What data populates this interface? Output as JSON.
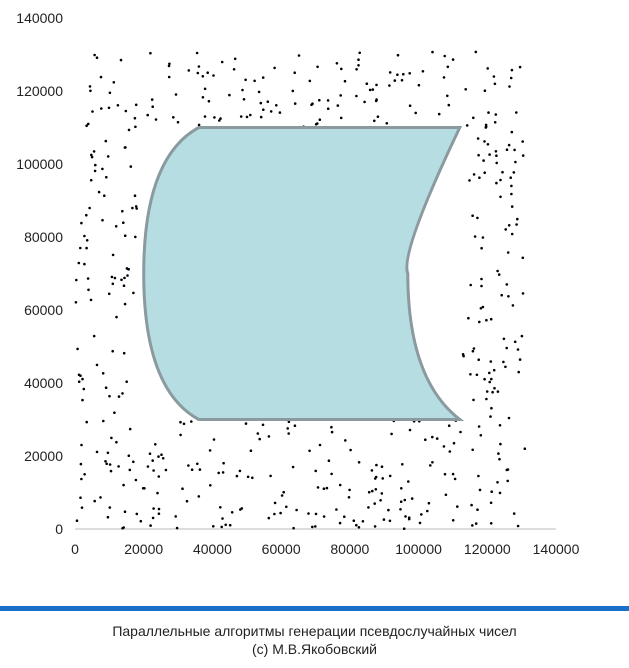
{
  "chart_data": {
    "type": "scatter",
    "title": "",
    "xlabel": "",
    "ylabel": "",
    "xlim": [
      0,
      140000
    ],
    "ylim": [
      0,
      140000
    ],
    "x_ticks": [
      "0",
      "20000",
      "40000",
      "60000",
      "80000",
      "100000",
      "120000",
      "140000"
    ],
    "y_ticks": [
      "0",
      "20000",
      "40000",
      "60000",
      "80000",
      "100000",
      "120000",
      "140000"
    ],
    "grid": false,
    "legend": "none",
    "point_range": {
      "x": [
        0,
        131000
      ],
      "y": [
        0,
        131000
      ]
    },
    "point_count_estimate": 900,
    "overlay_shape": {
      "type": "curved-cylinder",
      "x_range": [
        20000,
        112000
      ],
      "y_range": [
        30000,
        110000
      ],
      "fill": "#b6dde1",
      "stroke": "#8a9a9e"
    },
    "point_color": "#000000"
  },
  "footer": {
    "line1": "Параллельные алгоритмы генерации псевдослучайных чисел",
    "line2": "(c) М.В.Якобовский"
  },
  "colors": {
    "accent_line": "#1a6fc8"
  }
}
